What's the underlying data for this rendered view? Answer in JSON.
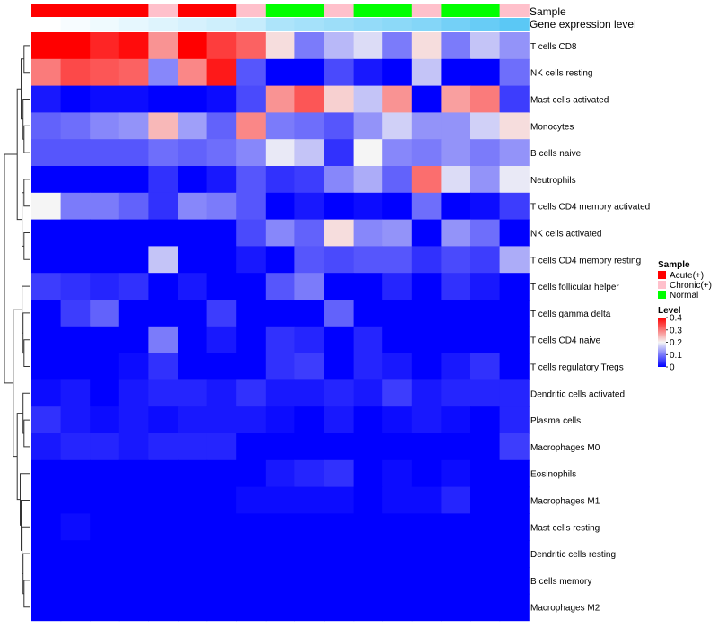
{
  "chart_data": {
    "type": "heatmap",
    "title": "",
    "xlabel": "",
    "ylabel": "",
    "annotation_tracks": [
      {
        "name": "Sample",
        "values": [
          "Acute(+)",
          "Acute(+)",
          "Acute(+)",
          "Acute(+)",
          "Chronic(+)",
          "Acute(+)",
          "Acute(+)",
          "Chronic(+)",
          "Normal",
          "Normal",
          "Chronic(+)",
          "Normal",
          "Normal",
          "Chronic(+)",
          "Normal",
          "Normal",
          "Chronic(+)"
        ]
      },
      {
        "name": "Gene expression level",
        "values": [
          0.0,
          0.05,
          0.1,
          0.15,
          0.2,
          0.25,
          0.3,
          0.35,
          0.5,
          0.55,
          0.6,
          0.65,
          0.7,
          0.75,
          0.85,
          0.92,
          1.0
        ],
        "color_low": "#ffffff",
        "color_high": "#5bc8f5"
      }
    ],
    "rows": [
      "T cells CD8",
      "NK cells resting",
      "Mast cells activated",
      "Monocytes",
      "B cells naive",
      "Neutrophils",
      "T cells CD4 memory activated",
      "NK cells activated",
      "T cells CD4 memory resting",
      "T cells follicular helper",
      "T cells gamma delta",
      "T cells CD4 naive",
      "T cells regulatory  Tregs",
      "Dendritic cells activated",
      "Plasma cells",
      "Macrophages M0",
      "Eosinophils",
      "Macrophages M1",
      "Mast cells resting",
      "Dendritic cells resting",
      "B cells memory",
      "Macrophages M2"
    ],
    "values": [
      [
        0.4,
        0.4,
        0.37,
        0.39,
        0.28,
        0.4,
        0.35,
        0.32,
        0.22,
        0.1,
        0.15,
        0.18,
        0.1,
        0.22,
        0.1,
        0.16,
        0.12
      ],
      [
        0.3,
        0.34,
        0.33,
        0.32,
        0.11,
        0.29,
        0.38,
        0.07,
        0.0,
        0.0,
        0.06,
        0.02,
        0.0,
        0.16,
        0.0,
        0.0,
        0.09
      ],
      [
        0.02,
        0.0,
        0.01,
        0.01,
        0.0,
        0.0,
        0.01,
        0.06,
        0.28,
        0.33,
        0.23,
        0.16,
        0.28,
        0.0,
        0.27,
        0.3,
        0.05
      ],
      [
        0.08,
        0.09,
        0.11,
        0.12,
        0.25,
        0.13,
        0.08,
        0.29,
        0.1,
        0.09,
        0.07,
        0.12,
        0.17,
        0.12,
        0.12,
        0.17,
        0.22
      ],
      [
        0.07,
        0.07,
        0.07,
        0.07,
        0.09,
        0.08,
        0.09,
        0.11,
        0.19,
        0.16,
        0.04,
        0.2,
        0.11,
        0.1,
        0.12,
        0.1,
        0.12
      ],
      [
        0.0,
        0.0,
        0.0,
        0.0,
        0.04,
        0.0,
        0.02,
        0.07,
        0.04,
        0.05,
        0.11,
        0.14,
        0.08,
        0.31,
        0.18,
        0.12,
        0.19
      ],
      [
        0.2,
        0.1,
        0.1,
        0.08,
        0.04,
        0.11,
        0.1,
        0.07,
        0.0,
        0.02,
        0.0,
        0.01,
        0.0,
        0.09,
        0.0,
        0.01,
        0.05
      ],
      [
        0.0,
        0.0,
        0.0,
        0.0,
        0.0,
        0.0,
        0.0,
        0.06,
        0.11,
        0.08,
        0.22,
        0.11,
        0.12,
        0.0,
        0.12,
        0.09,
        0.0
      ],
      [
        0.0,
        0.0,
        0.0,
        0.0,
        0.16,
        0.0,
        0.0,
        0.02,
        0.0,
        0.07,
        0.06,
        0.07,
        0.07,
        0.04,
        0.06,
        0.05,
        0.14
      ],
      [
        0.05,
        0.04,
        0.03,
        0.04,
        0.0,
        0.02,
        0.0,
        0.0,
        0.07,
        0.1,
        0.0,
        0.0,
        0.03,
        0.0,
        0.04,
        0.02,
        0.0
      ],
      [
        0.0,
        0.05,
        0.08,
        0.0,
        0.0,
        0.0,
        0.05,
        0.0,
        0.0,
        0.0,
        0.08,
        0.0,
        0.0,
        0.0,
        0.0,
        0.0,
        0.0
      ],
      [
        0.0,
        0.0,
        0.0,
        0.0,
        0.1,
        0.0,
        0.02,
        0.0,
        0.04,
        0.03,
        0.0,
        0.03,
        0.0,
        0.0,
        0.0,
        0.0,
        0.0
      ],
      [
        0.0,
        0.0,
        0.0,
        0.01,
        0.04,
        0.0,
        0.0,
        0.0,
        0.04,
        0.05,
        0.0,
        0.03,
        0.02,
        0.0,
        0.02,
        0.04,
        0.0
      ],
      [
        0.01,
        0.02,
        0.0,
        0.02,
        0.03,
        0.03,
        0.02,
        0.04,
        0.02,
        0.02,
        0.03,
        0.02,
        0.05,
        0.02,
        0.03,
        0.03,
        0.03
      ],
      [
        0.04,
        0.02,
        0.01,
        0.02,
        0.01,
        0.02,
        0.02,
        0.02,
        0.01,
        0.0,
        0.02,
        0.0,
        0.01,
        0.02,
        0.01,
        0.0,
        0.03
      ],
      [
        0.02,
        0.03,
        0.03,
        0.02,
        0.03,
        0.03,
        0.03,
        0.0,
        0.0,
        0.0,
        0.0,
        0.0,
        0.0,
        0.0,
        0.0,
        0.0,
        0.05
      ],
      [
        0.0,
        0.0,
        0.0,
        0.0,
        0.0,
        0.0,
        0.0,
        0.0,
        0.02,
        0.03,
        0.04,
        0.0,
        0.01,
        0.0,
        0.01,
        0.0,
        0.0
      ],
      [
        0.0,
        0.0,
        0.0,
        0.0,
        0.0,
        0.0,
        0.0,
        0.01,
        0.01,
        0.01,
        0.01,
        0.0,
        0.01,
        0.01,
        0.03,
        0.0,
        0.0
      ],
      [
        0.0,
        0.01,
        0.0,
        0.0,
        0.0,
        0.0,
        0.0,
        0.0,
        0.0,
        0.0,
        0.0,
        0.0,
        0.0,
        0.0,
        0.0,
        0.0,
        0.0
      ],
      [
        0.0,
        0.0,
        0.0,
        0.0,
        0.0,
        0.0,
        0.0,
        0.0,
        0.0,
        0.0,
        0.0,
        0.0,
        0.0,
        0.0,
        0.0,
        0.0,
        0.0
      ],
      [
        0.0,
        0.0,
        0.0,
        0.0,
        0.0,
        0.0,
        0.0,
        0.0,
        0.0,
        0.0,
        0.0,
        0.0,
        0.0,
        0.0,
        0.0,
        0.0,
        0.0
      ],
      [
        0.0,
        0.0,
        0.0,
        0.0,
        0.0,
        0.0,
        0.0,
        0.0,
        0.0,
        0.0,
        0.0,
        0.0,
        0.0,
        0.0,
        0.0,
        0.0,
        0.0
      ]
    ],
    "color_scale": {
      "range": [
        0,
        0.4
      ],
      "stops": [
        {
          "value": 0,
          "color": "#0000ff"
        },
        {
          "value": 0.2,
          "color": "#f5f5f5"
        },
        {
          "value": 0.4,
          "color": "#ff0000"
        }
      ]
    },
    "row_dendrogram": true,
    "legend": {
      "position": "right",
      "sample_title": "Sample",
      "sample_entries": [
        {
          "label": "Acute(+)",
          "color": "#ff0000"
        },
        {
          "label": "Chronic(+)",
          "color": "#ffc0cb"
        },
        {
          "label": "Normal",
          "color": "#00ff00"
        }
      ],
      "level_title": "Level",
      "level_ticks": [
        "0.4",
        "0.3",
        "0.2",
        "0.1",
        "0"
      ],
      "level_tick_values": [
        0.4,
        0.3,
        0.2,
        0.1,
        0
      ]
    }
  }
}
